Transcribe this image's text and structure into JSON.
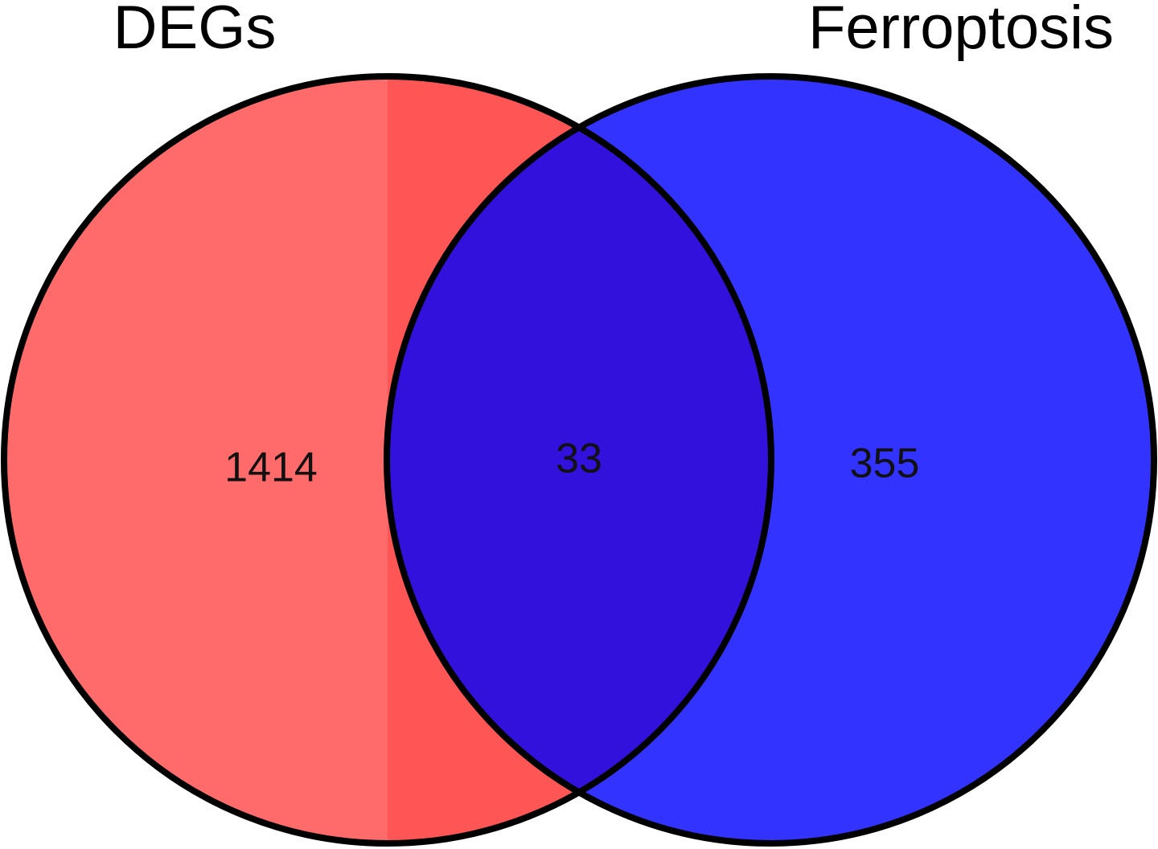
{
  "chart_data": {
    "type": "venn",
    "sets": [
      "DEGs",
      "Ferroptosis"
    ],
    "values": [
      1414,
      33,
      355
    ],
    "colors": [
      "#ff6b6b",
      "#3311dd",
      "#3333ff"
    ]
  }
}
